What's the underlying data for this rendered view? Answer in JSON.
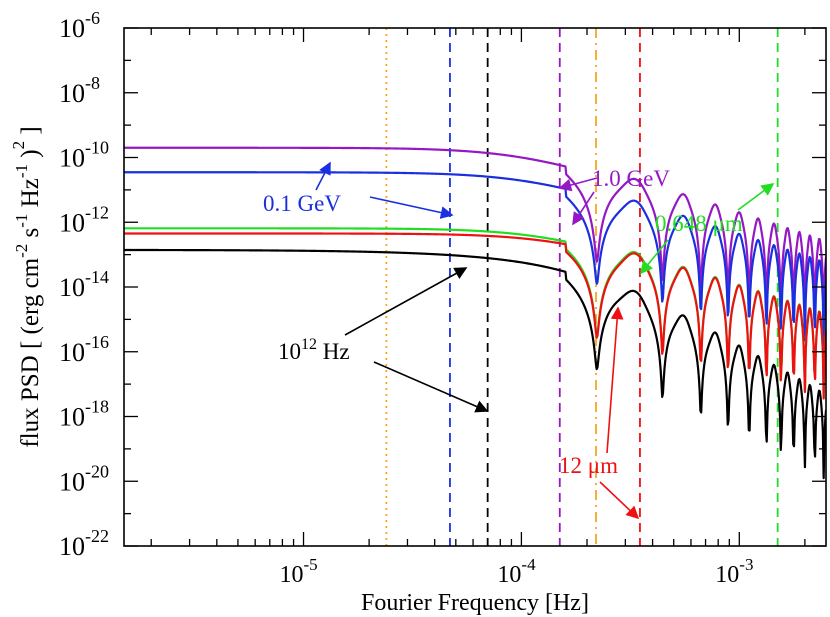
{
  "chart_data": {
    "type": "line",
    "title": "",
    "xlabel": "Fourier Frequency [Hz]",
    "ylabel": {
      "prefix": "flux PSD [ (erg cm",
      "exp1": "-2",
      "mid1": " s",
      "exp2": "-1",
      "mid2": " Hz",
      "exp3": "-1",
      "close": " )",
      "exp4": "2",
      "suffix": " ]"
    },
    "xscale": "log",
    "yscale": "log",
    "xlim": [
      1.5e-06,
      0.0025
    ],
    "ylim": [
      1e-22,
      1e-06
    ],
    "x_ticks": [
      {
        "base": "10",
        "exp": "-5",
        "value": 1e-05
      },
      {
        "base": "10",
        "exp": "-4",
        "value": 0.0001
      },
      {
        "base": "10",
        "exp": "-3",
        "value": 0.001
      }
    ],
    "y_ticks": [
      {
        "base": "10",
        "exp": "-6",
        "value": 1e-06
      },
      {
        "base": "10",
        "exp": "-8",
        "value": 1e-08
      },
      {
        "base": "10",
        "exp": "-10",
        "value": 1e-10
      },
      {
        "base": "10",
        "exp": "-12",
        "value": 1e-12
      },
      {
        "base": "10",
        "exp": "-14",
        "value": 1e-14
      },
      {
        "base": "10",
        "exp": "-16",
        "value": 1e-16
      },
      {
        "base": "10",
        "exp": "-18",
        "value": 1e-18
      },
      {
        "base": "10",
        "exp": "-20",
        "value": 1e-20
      },
      {
        "base": "10",
        "exp": "-22",
        "value": 1e-22
      }
    ],
    "series": [
      {
        "name": "1.0 GeV",
        "color": "#9419c4",
        "plateau": 2e-10,
        "knee": 0.0001
      },
      {
        "name": "0.1 GeV",
        "color": "#1a2fe0",
        "plateau": 3.5e-11,
        "knee": 0.00011
      },
      {
        "name": "0.648 μm",
        "color": "#22dd22",
        "plateau": 6.5e-13,
        "knee": 0.00013
      },
      {
        "name": "12 μm",
        "color": "#ee1111",
        "plateau": 4.5e-13,
        "knee": 0.00015
      },
      {
        "name": "10^12 Hz",
        "color": "#000000",
        "plateau": 1.4e-13,
        "knee": 4.5e-05
      }
    ],
    "vertical_lines": [
      {
        "x": 2.4e-05,
        "color": "#f5a623",
        "style": "dotted"
      },
      {
        "x": 4.7e-05,
        "color": "#1a2fe0",
        "style": "dashed"
      },
      {
        "x": 7e-05,
        "color": "#000000",
        "style": "dashed"
      },
      {
        "x": 0.00015,
        "color": "#9419c4",
        "style": "dashed"
      },
      {
        "x": 0.00022,
        "color": "#f5a623",
        "style": "dashdot"
      },
      {
        "x": 0.00035,
        "color": "#ee1111",
        "style": "dashed"
      },
      {
        "x": 0.0015,
        "color": "#22dd22",
        "style": "dashed"
      }
    ],
    "annotations": [
      {
        "text": "1.0 GeV",
        "color": "#9419c4"
      },
      {
        "text": "0.1 GeV",
        "color": "#1a2fe0"
      },
      {
        "text": "0.648 μm",
        "color": "#22dd22"
      },
      {
        "text": "12 μm",
        "color": "#ee1111"
      },
      {
        "text_base": "10",
        "text_exp": "12",
        "text_unit": " Hz",
        "color": "#000000"
      }
    ]
  }
}
